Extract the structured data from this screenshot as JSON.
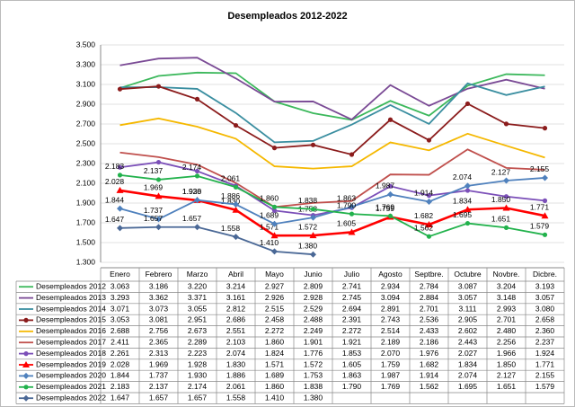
{
  "chart_data": {
    "type": "line",
    "title": "Desempleados 2012-2022",
    "categories": [
      "Enero",
      "Febrero",
      "Marzo",
      "Abril",
      "Mayo",
      "Junio",
      "Julio",
      "Agosto",
      "Septbre.",
      "Octubre",
      "Novbre.",
      "Dicbre."
    ],
    "ylim": [
      1300,
      3500
    ],
    "yticks": [
      {
        "value": 1300,
        "label": "1.300"
      },
      {
        "value": 1500,
        "label": "1.500"
      },
      {
        "value": 1700,
        "label": "1.700"
      },
      {
        "value": 1900,
        "label": "1.900"
      },
      {
        "value": 2100,
        "label": "2.100"
      },
      {
        "value": 2300,
        "label": "2.300"
      },
      {
        "value": 2500,
        "label": "2.500"
      },
      {
        "value": 2700,
        "label": "2.700"
      },
      {
        "value": 2900,
        "label": "2.900"
      },
      {
        "value": 3100,
        "label": "3.100"
      },
      {
        "value": 3300,
        "label": "3.300"
      },
      {
        "value": 3500,
        "label": "3.500"
      }
    ],
    "grid": true,
    "series": [
      {
        "name": "Desempleados 2012",
        "color": "#3cb85c",
        "marker": "none",
        "show_labels": false,
        "values": [
          3063,
          3186,
          3220,
          3214,
          2927,
          2809,
          2741,
          2934,
          2784,
          3087,
          3204,
          3193
        ],
        "value_labels": [
          "3.063",
          "3.186",
          "3.220",
          "3.214",
          "2.927",
          "2.809",
          "2.741",
          "2.934",
          "2.784",
          "3.087",
          "3.204",
          "3.193"
        ]
      },
      {
        "name": "Desempleados 2013",
        "color": "#7a4a95",
        "marker": "none",
        "show_labels": false,
        "values": [
          3293,
          3362,
          3371,
          3161,
          2926,
          2928,
          2745,
          3094,
          2884,
          3057,
          3148,
          3057
        ],
        "value_labels": [
          "3.293",
          "3.362",
          "3.371",
          "3.161",
          "2.926",
          "2.928",
          "2.745",
          "3.094",
          "2.884",
          "3.057",
          "3.148",
          "3.057"
        ]
      },
      {
        "name": "Desempleados 2014",
        "color": "#3a8ea0",
        "marker": "none",
        "show_labels": false,
        "values": [
          3071,
          3073,
          3055,
          2812,
          2515,
          2529,
          2694,
          2891,
          2701,
          3111,
          2993,
          3080
        ],
        "value_labels": [
          "3.071",
          "3.073",
          "3.055",
          "2.812",
          "2.515",
          "2.529",
          "2.694",
          "2.891",
          "2.701",
          "3.111",
          "2.993",
          "3.080"
        ]
      },
      {
        "name": "Desempleados 2015",
        "color": "#8b1c1c",
        "marker": "circle",
        "show_labels": false,
        "values": [
          3053,
          3081,
          2951,
          2686,
          2458,
          2488,
          2391,
          2743,
          2536,
          2905,
          2701,
          2658
        ],
        "value_labels": [
          "3.053",
          "3.081",
          "2.951",
          "2.686",
          "2.458",
          "2.488",
          "2.391",
          "2.743",
          "2.536",
          "2.905",
          "2.701",
          "2.658"
        ]
      },
      {
        "name": "Desempleados 2016",
        "color": "#f5b800",
        "marker": "none",
        "show_labels": false,
        "values": [
          2688,
          2756,
          2673,
          2551,
          2272,
          2249,
          2272,
          2514,
          2433,
          2602,
          2480,
          2360
        ],
        "value_labels": [
          "2.688",
          "2.756",
          "2.673",
          "2.551",
          "2.272",
          "2.249",
          "2.272",
          "2.514",
          "2.433",
          "2.602",
          "2.480",
          "2.360"
        ]
      },
      {
        "name": "Desempleados 2017",
        "color": "#c0504d",
        "marker": "none",
        "show_labels": false,
        "values": [
          2411,
          2365,
          2289,
          2103,
          1860,
          1901,
          1921,
          2189,
          2186,
          2443,
          2256,
          2237
        ],
        "value_labels": [
          "2.411",
          "2.365",
          "2.289",
          "2.103",
          "1.860",
          "1.901",
          "1.921",
          "2.189",
          "2.186",
          "2.443",
          "2.256",
          "2.237"
        ]
      },
      {
        "name": "Desempleados 2018",
        "color": "#7b4fb8",
        "marker": "circle",
        "show_labels": false,
        "values": [
          2261,
          2313,
          2223,
          2074,
          1824,
          1776,
          1853,
          2070,
          1976,
          2027,
          1966,
          1924
        ],
        "value_labels": [
          "2.261",
          "2.313",
          "2.223",
          "2.074",
          "1.824",
          "1.776",
          "1.853",
          "2.070",
          "1.976",
          "2.027",
          "1.966",
          "1.924"
        ]
      },
      {
        "name": "Desempleados 2019",
        "color": "#ff0000",
        "marker": "triangle",
        "show_labels": true,
        "values": [
          2028,
          1969,
          1928,
          1830,
          1571,
          1572,
          1605,
          1759,
          1682,
          1834,
          1850,
          1771
        ],
        "value_labels": [
          "2.028",
          "1.969",
          "1.928",
          "1.830",
          "1.571",
          "1.572",
          "1.605",
          "1.759",
          "1.682",
          "1.834",
          "1.850",
          "1.771"
        ]
      },
      {
        "name": "Desempleados 2020",
        "color": "#4f81bd",
        "marker": "diamond",
        "show_labels": true,
        "values": [
          1844,
          1737,
          1930,
          1886,
          1689,
          1753,
          1863,
          1987,
          1914,
          2074,
          2127,
          2155
        ],
        "value_labels": [
          "1.844",
          "1.737",
          "1.930",
          "1.886",
          "1.689",
          "1.753",
          "1.863",
          "1.987",
          "1.914",
          "2.074",
          "2.127",
          "2.155"
        ]
      },
      {
        "name": "Desempleados 2021",
        "color": "#22b24c",
        "marker": "circle",
        "show_labels": true,
        "values": [
          2183,
          2137,
          2174,
          2061,
          1860,
          1838,
          1790,
          1769,
          1562,
          1695,
          1651,
          1579
        ],
        "value_labels": [
          "2.183",
          "2.137",
          "2.174",
          "2.061",
          "1.860",
          "1.838",
          "1.790",
          "1.769",
          "1.562",
          "1.695",
          "1.651",
          "1.579"
        ]
      },
      {
        "name": "Desempleados 2022",
        "color": "#4a6896",
        "marker": "diamond",
        "show_labels": true,
        "values": [
          1647,
          1657,
          1657,
          1558,
          1410,
          1380,
          null,
          null,
          null,
          null,
          null,
          null
        ],
        "value_labels": [
          "1.647",
          "1.657",
          "1.657",
          "1.558",
          "1.410",
          "1.380",
          null,
          null,
          null,
          null,
          null,
          null
        ]
      }
    ]
  }
}
